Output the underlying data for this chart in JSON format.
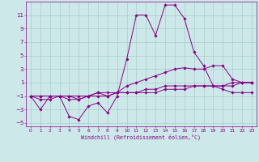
{
  "xlabel": "Windchill (Refroidissement éolien,°C)",
  "background_color": "#cce8e8",
  "grid_color": "#aacccc",
  "line_color": "#880088",
  "xlim": [
    -0.5,
    23.5
  ],
  "ylim": [
    -5.5,
    13.0
  ],
  "xticks": [
    0,
    1,
    2,
    3,
    4,
    5,
    6,
    7,
    8,
    9,
    10,
    11,
    12,
    13,
    14,
    15,
    16,
    17,
    18,
    19,
    20,
    21,
    22,
    23
  ],
  "yticks": [
    -5,
    -3,
    -1,
    1,
    3,
    5,
    7,
    9,
    11
  ],
  "series": [
    [
      0,
      1,
      2,
      3,
      4,
      5,
      6,
      7,
      8,
      9,
      10,
      11,
      12,
      13,
      14,
      15,
      16,
      17,
      18,
      19,
      20,
      21,
      22,
      23
    ],
    [
      -1,
      -3,
      -1,
      -1,
      -4,
      -4.5,
      -2.5,
      -2,
      -3.5,
      -1,
      4.5,
      11,
      11,
      8,
      12.5,
      12.5,
      10.5,
      5.5,
      3.5,
      0.5,
      0,
      -0.5,
      -0.5,
      -0.5
    ],
    [
      -1,
      -1.5,
      -1.5,
      -1,
      -1,
      -1.5,
      -1,
      -0.5,
      -0.5,
      -0.5,
      0.5,
      1,
      1.5,
      2,
      2.5,
      3,
      3.2,
      3,
      3,
      3.5,
      3.5,
      1.5,
      1,
      1
    ],
    [
      -1,
      -1,
      -1,
      -1,
      -1,
      -1,
      -1,
      -1,
      -1,
      -0.5,
      -0.5,
      -0.5,
      0,
      0,
      0.5,
      0.5,
      0.5,
      0.5,
      0.5,
      0.5,
      0.5,
      0.5,
      1,
      1
    ],
    [
      -1,
      -1,
      -1,
      -1,
      -1.5,
      -1.5,
      -1,
      -0.5,
      -1,
      -0.5,
      -0.5,
      -0.5,
      -0.5,
      -0.5,
      0,
      0,
      0,
      0.5,
      0.5,
      0.5,
      0.5,
      1,
      1,
      1
    ]
  ]
}
